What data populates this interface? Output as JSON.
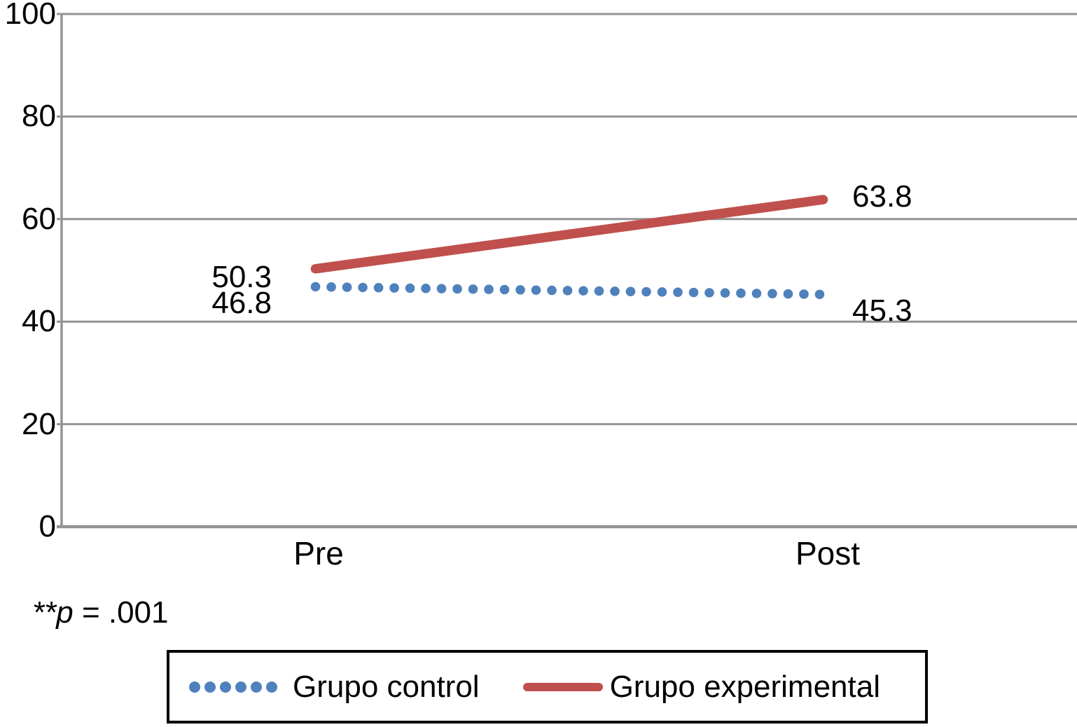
{
  "chart_data": {
    "type": "line",
    "title": "",
    "xlabel": "",
    "ylabel": "",
    "categories": [
      "Pre",
      "Post"
    ],
    "series": [
      {
        "name": "Grupo control",
        "values": [
          46.8,
          45.3
        ],
        "color": "#4F81BD",
        "line_style": "dotted"
      },
      {
        "name": "Grupo experimental",
        "values": [
          50.3,
          63.8
        ],
        "color": "#C0504D",
        "line_style": "solid"
      }
    ],
    "ylim": [
      0,
      100
    ],
    "yticks": [
      0,
      20,
      40,
      60,
      80,
      100
    ],
    "ytick_labels_top_to_bottom": [
      "100",
      "80",
      "60",
      "40",
      "20",
      "0"
    ],
    "grid": "horizontal",
    "gridline_color": "#949494",
    "axis_color": "#949494",
    "legend_position": "bottom-boxed",
    "annotation": {
      "prefix_italic": "**p",
      "suffix": " = .001"
    }
  }
}
